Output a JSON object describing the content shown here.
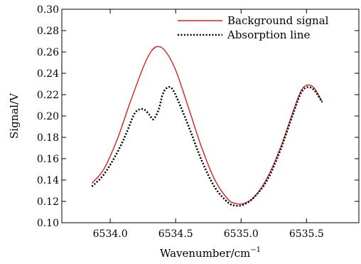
{
  "chart_data": {
    "type": "line",
    "xlabel": "Wavenumber/cm",
    "xlabel_superscript": "−1",
    "ylabel": "Signal/V",
    "xlim": [
      6533.63,
      6535.9
    ],
    "ylim": [
      0.1,
      0.3
    ],
    "xticks": [
      6534.0,
      6534.5,
      6535.0,
      6535.5
    ],
    "xtick_labels": [
      "6534.0",
      "6534.5",
      "6535.0",
      "6535.5"
    ],
    "yticks": [
      0.1,
      0.12,
      0.14,
      0.16,
      0.18,
      0.2,
      0.22,
      0.24,
      0.26,
      0.28,
      0.3
    ],
    "ytick_labels": [
      "0.10",
      "0.12",
      "0.14",
      "0.16",
      "0.18",
      "0.20",
      "0.22",
      "0.24",
      "0.26",
      "0.28",
      "0.30"
    ],
    "grid": false,
    "legend_position": "top-right",
    "series": [
      {
        "name": "Background signal",
        "color": "#d62020",
        "style": "solid",
        "x": [
          6533.86,
          6533.95,
          6534.05,
          6534.15,
          6534.25,
          6534.31,
          6534.36,
          6534.42,
          6534.5,
          6534.6,
          6534.7,
          6534.8,
          6534.9,
          6534.96,
          6535.02,
          6535.1,
          6535.2,
          6535.3,
          6535.4,
          6535.46,
          6535.51,
          6535.56,
          6535.62
        ],
        "y": [
          0.137,
          0.15,
          0.177,
          0.212,
          0.245,
          0.26,
          0.265,
          0.261,
          0.243,
          0.207,
          0.17,
          0.14,
          0.122,
          0.118,
          0.118,
          0.124,
          0.142,
          0.17,
          0.205,
          0.224,
          0.229,
          0.226,
          0.213
        ]
      },
      {
        "name": "Absorption line",
        "color": "#000000",
        "style": "dotted",
        "x": [
          6533.86,
          6533.95,
          6534.05,
          6534.12,
          6534.18,
          6534.22,
          6534.26,
          6534.3,
          6534.33,
          6534.37,
          6534.4,
          6534.43,
          6534.47,
          6534.52,
          6534.6,
          6534.7,
          6534.8,
          6534.9,
          6534.96,
          6535.02,
          6535.1,
          6535.2,
          6535.3,
          6535.4,
          6535.46,
          6535.51,
          6535.56,
          6535.62
        ],
        "y": [
          0.134,
          0.145,
          0.165,
          0.183,
          0.201,
          0.206,
          0.206,
          0.201,
          0.197,
          0.206,
          0.22,
          0.226,
          0.226,
          0.214,
          0.19,
          0.158,
          0.133,
          0.119,
          0.116,
          0.117,
          0.124,
          0.14,
          0.168,
          0.203,
          0.222,
          0.227,
          0.224,
          0.213
        ]
      }
    ]
  }
}
